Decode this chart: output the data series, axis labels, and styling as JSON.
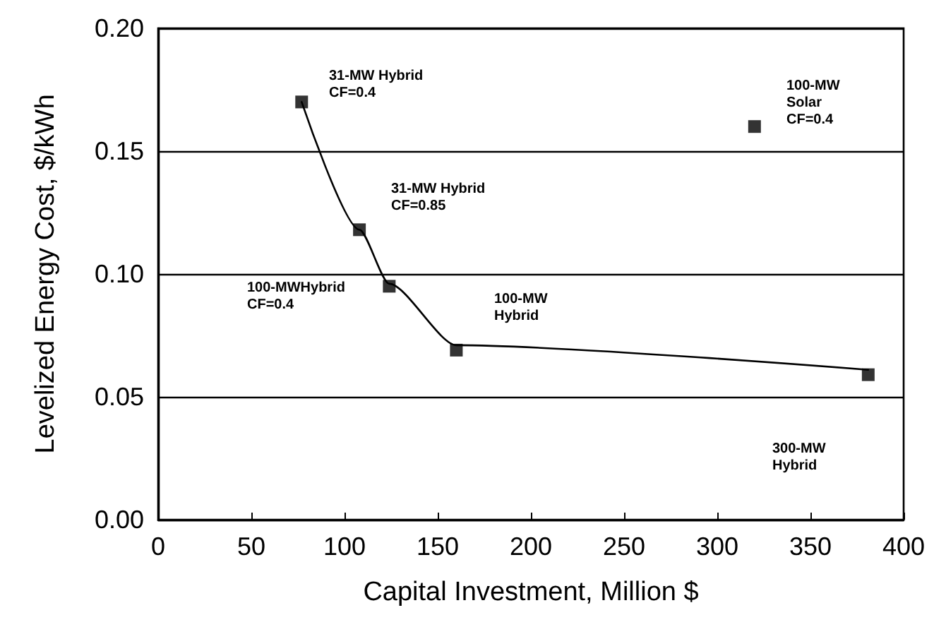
{
  "chart_data": {
    "type": "scatter",
    "xlabel": "Capital Investment, Million $",
    "ylabel": "Levelized Energy Cost, $/kWh",
    "series": [
      {
        "color": "#000000",
        "marker": "square",
        "x": [
          77,
          108,
          124,
          160,
          381,
          320
        ],
        "values": [
          0.17,
          0.118,
          0.095,
          0.069,
          0.059,
          0.16
        ]
      },
      {
        "type": "line",
        "color": "#000000",
        "marker": "none",
        "line_style": "solid",
        "x": [
          77,
          108,
          124,
          160,
          381
        ],
        "values": [
          0.17,
          0.118,
          0.096,
          0.071,
          0.061
        ]
      }
    ],
    "xlim": [
      0,
      400
    ],
    "xticks": [
      0,
      50,
      100,
      150,
      200,
      250,
      300,
      350,
      400
    ],
    "ylim": [
      0,
      0.2
    ],
    "yticks": [
      {
        "value": 0,
        "label": "0.00"
      },
      {
        "value": 0.05,
        "label": "0.05"
      },
      {
        "value": 0.1,
        "label": "0.10"
      },
      {
        "value": 0.15,
        "label": "0.15"
      },
      {
        "value": 0.2,
        "label": "0.20"
      }
    ],
    "grid": "y",
    "annotations": [
      "31-MW Hybrid\nCF=0.4",
      "31-MW Hybrid\nCF=0.85",
      "100-MWHybrid\nCF=0.4",
      "100-MW\nHybrid",
      "300-MW\nHybrid",
      "100-MW\nSolar\nCF=0.4"
    ]
  }
}
